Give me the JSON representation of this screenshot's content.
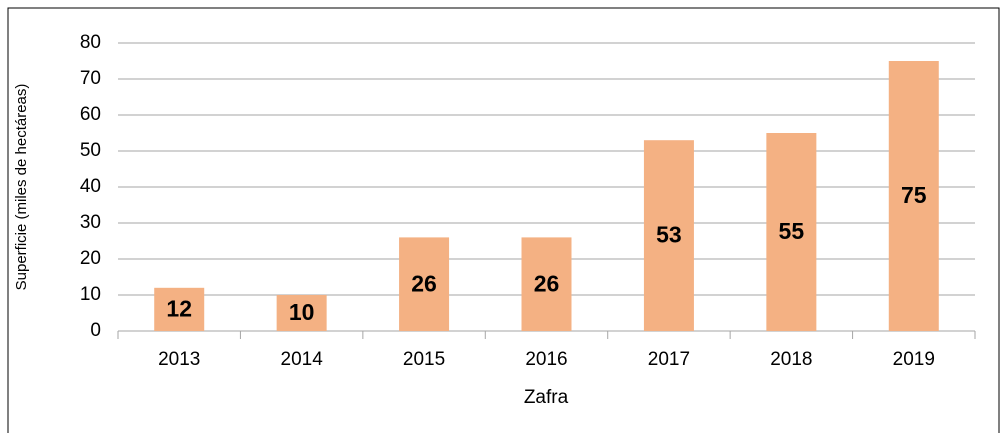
{
  "chart_data": {
    "type": "bar",
    "x_label": "Zafra",
    "y_label": "Superficie (miles de hectáreas)",
    "categories": [
      "2013",
      "2014",
      "2015",
      "2016",
      "2017",
      "2018",
      "2019"
    ],
    "values": [
      12,
      10,
      26,
      26,
      53,
      55,
      75
    ],
    "color": "#f4b183",
    "ylim": [
      0,
      80
    ],
    "yticks": [
      0,
      10,
      20,
      30,
      40,
      50,
      60,
      70,
      80
    ],
    "grid": true
  }
}
